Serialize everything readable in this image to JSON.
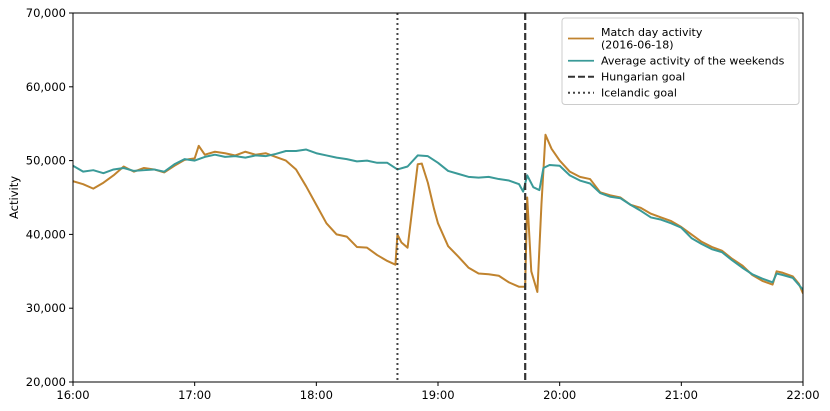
{
  "chart_data": {
    "type": "line",
    "ylabel": "Activity",
    "xlabel": "",
    "xlim": [
      "16:00",
      "22:00"
    ],
    "ylim": [
      20000,
      70000
    ],
    "x_ticks": [
      "16:00",
      "17:00",
      "18:00",
      "19:00",
      "20:00",
      "21:00",
      "22:00"
    ],
    "y_ticks": [
      20000,
      30000,
      40000,
      50000,
      60000,
      70000
    ],
    "y_tick_labels": [
      "20,000",
      "30,000",
      "40,000",
      "50,000",
      "60,000",
      "70,000"
    ],
    "grid": false,
    "legend_position": "top-right",
    "series": [
      {
        "name": "Match day activity\n(2016-06-18)",
        "legend_lines": [
          "Match day activity",
          "(2016-06-18)"
        ],
        "color": "#c0832e",
        "dash": "solid",
        "points": [
          [
            "16:00",
            47200
          ],
          [
            "16:05",
            46800
          ],
          [
            "16:10",
            46200
          ],
          [
            "16:15",
            47000
          ],
          [
            "16:20",
            48000
          ],
          [
            "16:25",
            49200
          ],
          [
            "16:30",
            48500
          ],
          [
            "16:35",
            49000
          ],
          [
            "16:40",
            48800
          ],
          [
            "16:45",
            48400
          ],
          [
            "16:50",
            49300
          ],
          [
            "16:55",
            50100
          ],
          [
            "17:00",
            50300
          ],
          [
            "17:02",
            52000
          ],
          [
            "17:05",
            50800
          ],
          [
            "17:10",
            51200
          ],
          [
            "17:15",
            51000
          ],
          [
            "17:20",
            50700
          ],
          [
            "17:25",
            51200
          ],
          [
            "17:30",
            50800
          ],
          [
            "17:35",
            51000
          ],
          [
            "17:40",
            50500
          ],
          [
            "17:45",
            50000
          ],
          [
            "17:50",
            48800
          ],
          [
            "17:55",
            46500
          ],
          [
            "18:00",
            44000
          ],
          [
            "18:05",
            41500
          ],
          [
            "18:10",
            40000
          ],
          [
            "18:15",
            39700
          ],
          [
            "18:20",
            38300
          ],
          [
            "18:25",
            38200
          ],
          [
            "18:30",
            37200
          ],
          [
            "18:35",
            36400
          ],
          [
            "18:39",
            35900
          ],
          [
            "18:40",
            40000
          ],
          [
            "18:42",
            38900
          ],
          [
            "18:45",
            38200
          ],
          [
            "18:48",
            45000
          ],
          [
            "18:50",
            49500
          ],
          [
            "18:52",
            49600
          ],
          [
            "18:55",
            47000
          ],
          [
            "18:58",
            43500
          ],
          [
            "19:00",
            41500
          ],
          [
            "19:05",
            38400
          ],
          [
            "19:10",
            37000
          ],
          [
            "19:15",
            35500
          ],
          [
            "19:20",
            34700
          ],
          [
            "19:25",
            34600
          ],
          [
            "19:30",
            34400
          ],
          [
            "19:35",
            33500
          ],
          [
            "19:40",
            32900
          ],
          [
            "19:43",
            32900
          ],
          [
            "19:44",
            45000
          ],
          [
            "19:46",
            35000
          ],
          [
            "19:49",
            32200
          ],
          [
            "19:51",
            44000
          ],
          [
            "19:53",
            53500
          ],
          [
            "19:56",
            51600
          ],
          [
            "20:00",
            50000
          ],
          [
            "20:05",
            48500
          ],
          [
            "20:10",
            47800
          ],
          [
            "20:15",
            47500
          ],
          [
            "20:20",
            45700
          ],
          [
            "20:25",
            45300
          ],
          [
            "20:30",
            45000
          ],
          [
            "20:35",
            44000
          ],
          [
            "20:40",
            43600
          ],
          [
            "20:45",
            42800
          ],
          [
            "20:50",
            42300
          ],
          [
            "20:55",
            41800
          ],
          [
            "21:00",
            41000
          ],
          [
            "21:05",
            40000
          ],
          [
            "21:10",
            39000
          ],
          [
            "21:15",
            38300
          ],
          [
            "21:20",
            37800
          ],
          [
            "21:25",
            36700
          ],
          [
            "21:30",
            35800
          ],
          [
            "21:35",
            34500
          ],
          [
            "21:40",
            33700
          ],
          [
            "21:45",
            33200
          ],
          [
            "21:47",
            35000
          ],
          [
            "21:50",
            34800
          ],
          [
            "21:55",
            34300
          ],
          [
            "21:58",
            33300
          ],
          [
            "22:00",
            32000
          ]
        ]
      },
      {
        "name": "Average activity of the weekends",
        "legend_lines": [
          "Average activity of the weekends"
        ],
        "color": "#3a9a98",
        "dash": "solid",
        "points": [
          [
            "16:00",
            49300
          ],
          [
            "16:05",
            48500
          ],
          [
            "16:10",
            48700
          ],
          [
            "16:15",
            48300
          ],
          [
            "16:20",
            48800
          ],
          [
            "16:25",
            49000
          ],
          [
            "16:30",
            48600
          ],
          [
            "16:35",
            48700
          ],
          [
            "16:40",
            48800
          ],
          [
            "16:45",
            48500
          ],
          [
            "16:50",
            49500
          ],
          [
            "16:55",
            50200
          ],
          [
            "17:00",
            50000
          ],
          [
            "17:05",
            50500
          ],
          [
            "17:10",
            50800
          ],
          [
            "17:15",
            50500
          ],
          [
            "17:20",
            50600
          ],
          [
            "17:25",
            50400
          ],
          [
            "17:30",
            50700
          ],
          [
            "17:35",
            50600
          ],
          [
            "17:40",
            50900
          ],
          [
            "17:45",
            51300
          ],
          [
            "17:50",
            51300
          ],
          [
            "17:55",
            51500
          ],
          [
            "18:00",
            51000
          ],
          [
            "18:05",
            50700
          ],
          [
            "18:10",
            50400
          ],
          [
            "18:15",
            50200
          ],
          [
            "18:20",
            49900
          ],
          [
            "18:25",
            50000
          ],
          [
            "18:30",
            49700
          ],
          [
            "18:35",
            49700
          ],
          [
            "18:40",
            48800
          ],
          [
            "18:45",
            49200
          ],
          [
            "18:50",
            50700
          ],
          [
            "18:55",
            50600
          ],
          [
            "19:00",
            49700
          ],
          [
            "19:05",
            48600
          ],
          [
            "19:10",
            48200
          ],
          [
            "19:15",
            47800
          ],
          [
            "19:20",
            47700
          ],
          [
            "19:25",
            47800
          ],
          [
            "19:30",
            47500
          ],
          [
            "19:35",
            47300
          ],
          [
            "19:40",
            46800
          ],
          [
            "19:42",
            45800
          ],
          [
            "19:44",
            48000
          ],
          [
            "19:47",
            46400
          ],
          [
            "19:50",
            46000
          ],
          [
            "19:52",
            49000
          ],
          [
            "19:55",
            49400
          ],
          [
            "20:00",
            49300
          ],
          [
            "20:05",
            48000
          ],
          [
            "20:10",
            47300
          ],
          [
            "20:15",
            46900
          ],
          [
            "20:20",
            45600
          ],
          [
            "20:25",
            45100
          ],
          [
            "20:30",
            44900
          ],
          [
            "20:35",
            44000
          ],
          [
            "20:40",
            43200
          ],
          [
            "20:45",
            42300
          ],
          [
            "20:50",
            42000
          ],
          [
            "20:55",
            41500
          ],
          [
            "21:00",
            40900
          ],
          [
            "21:05",
            39500
          ],
          [
            "21:10",
            38700
          ],
          [
            "21:15",
            38000
          ],
          [
            "21:20",
            37600
          ],
          [
            "21:25",
            36500
          ],
          [
            "21:30",
            35500
          ],
          [
            "21:35",
            34600
          ],
          [
            "21:40",
            34000
          ],
          [
            "21:45",
            33500
          ],
          [
            "21:47",
            34700
          ],
          [
            "21:50",
            34500
          ],
          [
            "21:55",
            34100
          ],
          [
            "22:00",
            32500
          ]
        ]
      }
    ],
    "vertical_lines": [
      {
        "name": "Hungarian goal",
        "x": "19:43",
        "color": "#333333",
        "dash": "dashed"
      },
      {
        "name": "Icelandic goal",
        "x": "18:40",
        "color": "#444444",
        "dash": "dotted"
      }
    ]
  }
}
